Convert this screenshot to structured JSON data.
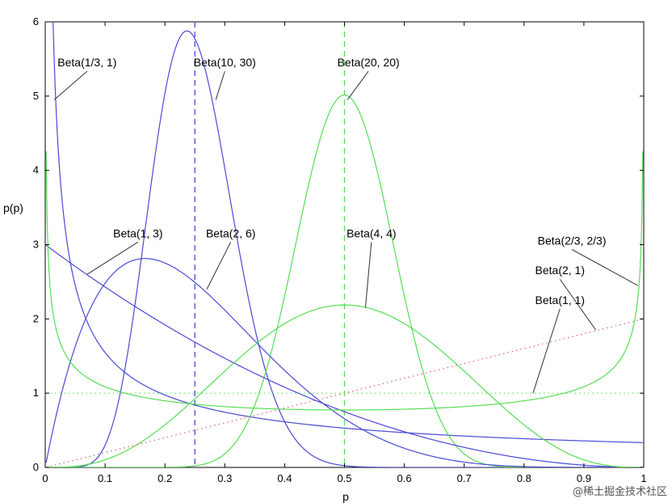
{
  "chart_data": {
    "type": "line",
    "title": "",
    "xlabel": "p",
    "ylabel": "p(p)",
    "xlim": [
      0,
      1
    ],
    "ylim": [
      0,
      6
    ],
    "x_ticks": [
      "0",
      "0.1",
      "0.2",
      "0.3",
      "0.4",
      "0.5",
      "0.6",
      "0.7",
      "0.8",
      "0.9",
      "1"
    ],
    "y_ticks": [
      "0",
      "1",
      "2",
      "3",
      "4",
      "5",
      "6"
    ],
    "grid": false,
    "colors": {
      "blue": "#4a4ad6",
      "green": "#55dd55",
      "red": "#e06060"
    },
    "series": [
      {
        "name": "Beta(1/3, 1)",
        "a": 0.3333,
        "b": 1,
        "color": "blue",
        "style": "solid",
        "label_at": [
          0.07,
          5.4
        ],
        "leader_to": [
          0.015,
          4.95
        ]
      },
      {
        "name": "Beta(10, 30)",
        "a": 10,
        "b": 30,
        "color": "blue",
        "style": "solid",
        "label_at": [
          0.3,
          5.4
        ],
        "leader_to": [
          0.285,
          4.95
        ]
      },
      {
        "name": "Beta(20, 20)",
        "a": 20,
        "b": 20,
        "color": "green",
        "style": "solid",
        "label_at": [
          0.54,
          5.4
        ],
        "leader_to": [
          0.505,
          4.95
        ]
      },
      {
        "name": "Beta(1, 3)",
        "a": 1,
        "b": 3,
        "color": "blue",
        "style": "solid",
        "label_at": [
          0.155,
          3.1
        ],
        "leader_to": [
          0.07,
          2.6
        ]
      },
      {
        "name": "Beta(2, 6)",
        "a": 2,
        "b": 6,
        "color": "blue",
        "style": "solid",
        "label_at": [
          0.31,
          3.1
        ],
        "leader_to": [
          0.27,
          2.4
        ]
      },
      {
        "name": "Beta(4, 4)",
        "a": 4,
        "b": 4,
        "color": "green",
        "style": "solid",
        "label_at": [
          0.545,
          3.1
        ],
        "leader_to": [
          0.535,
          2.15
        ]
      },
      {
        "name": "Beta(2/3, 2/3)",
        "a": 0.6667,
        "b": 0.6667,
        "color": "green",
        "style": "solid",
        "label_at": [
          0.88,
          3.0
        ],
        "leader_to": [
          0.99,
          2.45
        ]
      },
      {
        "name": "Beta(2, 1)",
        "a": 2,
        "b": 1,
        "color": "red",
        "style": "dotted",
        "label_at": [
          0.86,
          2.6
        ],
        "leader_to": [
          0.92,
          1.85
        ]
      },
      {
        "name": "Beta(1, 1)",
        "a": 1,
        "b": 1,
        "color": "green",
        "style": "dotted",
        "label_at": [
          0.86,
          2.2
        ],
        "leader_to": [
          0.815,
          1.0
        ]
      }
    ],
    "vlines": [
      {
        "x": 0.25,
        "color": "blue",
        "style": "dashed"
      },
      {
        "x": 0.5,
        "color": "green",
        "style": "dashed"
      }
    ]
  },
  "watermark": "@稀土掘金技术社区"
}
